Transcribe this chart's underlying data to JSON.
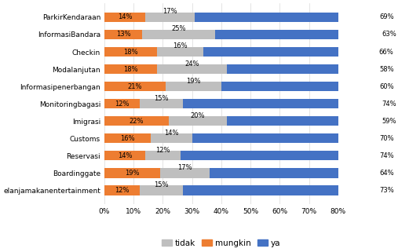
{
  "categories": [
    "elanjamakanentertainment",
    "Boardinggate",
    "Reservasi",
    "Customs",
    "Imigrasi",
    "Monitoringbagasi",
    "Informasipenerbangan",
    "Modalanjutan",
    "Checkin",
    "InformasiBandara",
    "ParkirKendaraan"
  ],
  "mungkin": [
    12,
    19,
    14,
    16,
    22,
    12,
    21,
    18,
    18,
    13,
    14
  ],
  "tidak": [
    15,
    17,
    12,
    14,
    20,
    15,
    19,
    24,
    16,
    25,
    17
  ],
  "ya": [
    73,
    64,
    74,
    70,
    59,
    74,
    60,
    58,
    66,
    63,
    69
  ],
  "tidak_color": "#bfbfbf",
  "mungkin_color": "#ed7d31",
  "ya_color": "#4472c4",
  "xlim": [
    0,
    80
  ],
  "xtick_labels": [
    "0%",
    "10%",
    "20%",
    "30%",
    "40%",
    "50%",
    "60%",
    "70%",
    "80%"
  ],
  "xtick_values": [
    0,
    10,
    20,
    30,
    40,
    50,
    60,
    70,
    80
  ],
  "legend_labels": [
    "tidak",
    "mungkin",
    "ya"
  ],
  "bar_height": 0.55,
  "fontsize_bar_labels": 6.0,
  "fontsize_yticks": 6.5,
  "fontsize_xticks": 6.5,
  "fontsize_legend": 7.5
}
